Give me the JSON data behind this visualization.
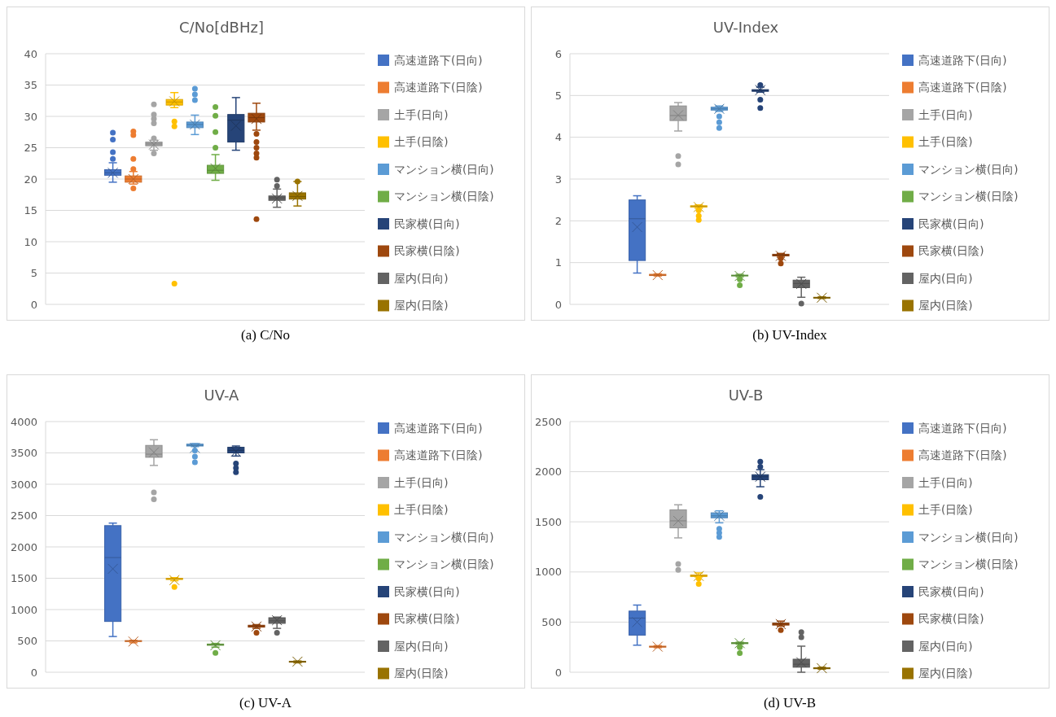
{
  "chart_data": [
    {
      "type": "box",
      "title": "C/No[dBHz]",
      "categories": [
        null
      ],
      "ylim": [
        0,
        40
      ],
      "yticks": [
        0,
        5,
        10,
        15,
        20,
        25,
        30,
        35,
        40
      ],
      "grid": "y",
      "legend": "right",
      "annotations": [
        "(a) C/No"
      ],
      "series": [
        {
          "name": "高速道路下(日向)",
          "color": "#4472c4",
          "boxes": [
            {
              "low": 19.5,
              "q1": 20.6,
              "median": 21.0,
              "q3": 21.5,
              "high": 22.6,
              "mean": 21.0,
              "outliers": [
                23.2,
                24.3,
                26.3,
                27.4
              ]
            }
          ]
        },
        {
          "name": "高速道路下(日陰)",
          "color": "#ed7d31",
          "boxes": [
            {
              "low": 19.2,
              "q1": 19.5,
              "median": 20.0,
              "q3": 20.5,
              "high": 21.2,
              "mean": 20.0,
              "outliers": [
                18.5,
                21.6,
                23.2,
                27.0,
                27.6
              ]
            }
          ]
        },
        {
          "name": "土手(日向)",
          "color": "#a5a5a5",
          "boxes": [
            {
              "low": 24.6,
              "q1": 25.3,
              "median": 25.6,
              "q3": 25.9,
              "high": 26.2,
              "mean": 25.5,
              "outliers": [
                24.1,
                26.5,
                28.9,
                29.6,
                30.3,
                31.9
              ]
            }
          ]
        },
        {
          "name": "土手(日陰)",
          "color": "#ffc000",
          "boxes": [
            {
              "low": 31.4,
              "q1": 31.8,
              "median": 32.3,
              "q3": 32.7,
              "high": 33.8,
              "mean": 32.4,
              "outliers": [
                3.3,
                28.4,
                29.2
              ]
            }
          ]
        },
        {
          "name": "マンション横(日向)",
          "color": "#5b9bd5",
          "boxes": [
            {
              "low": 27.1,
              "q1": 28.2,
              "median": 28.7,
              "q3": 29.1,
              "high": 30.2,
              "mean": 28.7,
              "outliers": [
                32.6,
                33.5,
                34.4
              ]
            }
          ]
        },
        {
          "name": "マンション横(日陰)",
          "color": "#70ad47",
          "boxes": [
            {
              "low": 19.8,
              "q1": 20.9,
              "median": 21.4,
              "q3": 22.2,
              "high": 23.9,
              "mean": 21.7,
              "outliers": [
                25.0,
                27.5,
                30.1,
                31.5
              ]
            }
          ]
        },
        {
          "name": "民家横(日向)",
          "color": "#264478",
          "boxes": [
            {
              "low": 24.6,
              "q1": 25.9,
              "median": 29.4,
              "q3": 30.3,
              "high": 33.0,
              "mean": 28.5
            }
          ]
        },
        {
          "name": "民家横(日陰)",
          "color": "#9e480e",
          "boxes": [
            {
              "low": 27.8,
              "q1": 29.1,
              "median": 29.8,
              "q3": 30.5,
              "high": 32.1,
              "mean": 29.6,
              "outliers": [
                13.6,
                23.4,
                24.1,
                25.0,
                25.9,
                27.2
              ]
            }
          ]
        },
        {
          "name": "屋内(日向)",
          "color": "#636363",
          "boxes": [
            {
              "low": 15.5,
              "q1": 16.6,
              "median": 17.0,
              "q3": 17.3,
              "high": 18.4,
              "mean": 16.9,
              "outliers": [
                18.9,
                19.9
              ]
            }
          ]
        },
        {
          "name": "屋内(日陰)",
          "color": "#997300",
          "boxes": [
            {
              "low": 15.7,
              "q1": 16.8,
              "median": 17.2,
              "q3": 17.8,
              "high": 19.6,
              "mean": 17.3,
              "outliers": [
                19.6
              ]
            }
          ]
        }
      ]
    },
    {
      "type": "box",
      "title": "UV-Index",
      "categories": [
        null
      ],
      "ylim": [
        0,
        6
      ],
      "yticks": [
        0,
        1,
        2,
        3,
        4,
        5,
        6
      ],
      "grid": "y",
      "legend": "right",
      "annotations": [
        "(b) UV-Index"
      ],
      "series": [
        {
          "name": "高速道路下(日向)",
          "color": "#4472c4",
          "boxes": [
            {
              "low": 0.75,
              "q1": 1.05,
              "median": 2.05,
              "q3": 2.5,
              "high": 2.6,
              "mean": 1.85
            }
          ]
        },
        {
          "name": "高速道路下(日陰)",
          "color": "#ed7d31",
          "boxes": [
            {
              "low": 0.68,
              "q1": 0.69,
              "median": 0.7,
              "q3": 0.72,
              "high": 0.73,
              "mean": 0.7
            }
          ]
        },
        {
          "name": "土手(日向)",
          "color": "#a5a5a5",
          "boxes": [
            {
              "low": 4.15,
              "q1": 4.4,
              "median": 4.52,
              "q3": 4.75,
              "high": 4.83,
              "mean": 4.53,
              "outliers": [
                3.35,
                3.55
              ]
            }
          ]
        },
        {
          "name": "土手(日陰)",
          "color": "#ffc000",
          "boxes": [
            {
              "low": 2.3,
              "q1": 2.33,
              "median": 2.35,
              "q3": 2.36,
              "high": 2.38,
              "mean": 2.33,
              "outliers": [
                2.02,
                2.12,
                2.25
              ]
            }
          ]
        },
        {
          "name": "マンション横(日向)",
          "color": "#5b9bd5",
          "boxes": [
            {
              "low": 4.62,
              "q1": 4.65,
              "median": 4.68,
              "q3": 4.72,
              "high": 4.75,
              "mean": 4.68,
              "outliers": [
                4.22,
                4.36,
                4.5
              ]
            }
          ]
        },
        {
          "name": "マンション横(日陰)",
          "color": "#70ad47",
          "boxes": [
            {
              "low": 0.66,
              "q1": 0.68,
              "median": 0.69,
              "q3": 0.7,
              "high": 0.72,
              "mean": 0.68,
              "outliers": [
                0.46,
                0.6
              ]
            }
          ]
        },
        {
          "name": "民家横(日向)",
          "color": "#264478",
          "boxes": [
            {
              "low": 5.08,
              "q1": 5.1,
              "median": 5.12,
              "q3": 5.14,
              "high": 5.2,
              "mean": 5.13,
              "outliers": [
                4.7,
                4.9,
                5.25
              ]
            }
          ]
        },
        {
          "name": "民家横(日陰)",
          "color": "#9e480e",
          "boxes": [
            {
              "low": 1.13,
              "q1": 1.16,
              "median": 1.18,
              "q3": 1.2,
              "high": 1.22,
              "mean": 1.16,
              "outliers": [
                0.98,
                1.1
              ]
            }
          ]
        },
        {
          "name": "屋内(日向)",
          "color": "#636363",
          "boxes": [
            {
              "low": 0.17,
              "q1": 0.4,
              "median": 0.5,
              "q3": 0.58,
              "high": 0.65,
              "mean": 0.49,
              "outliers": [
                0.02
              ]
            }
          ]
        },
        {
          "name": "屋内(日陰)",
          "color": "#997300",
          "boxes": [
            {
              "low": 0.14,
              "q1": 0.15,
              "median": 0.16,
              "q3": 0.17,
              "high": 0.18,
              "mean": 0.16
            }
          ]
        }
      ]
    },
    {
      "type": "box",
      "title": "UV-A",
      "categories": [
        null
      ],
      "ylim": [
        0,
        4000
      ],
      "yticks": [
        0,
        500,
        1000,
        1500,
        2000,
        2500,
        3000,
        3500,
        4000
      ],
      "grid": "y",
      "legend": "right",
      "annotations": [
        "(c) UV-A"
      ],
      "series": [
        {
          "name": "高速道路下(日向)",
          "color": "#4472c4",
          "boxes": [
            {
              "low": 570,
              "q1": 810,
              "median": 1830,
              "q3": 2340,
              "high": 2380,
              "mean": 1650
            }
          ]
        },
        {
          "name": "高速道路下(日陰)",
          "color": "#ed7d31",
          "boxes": [
            {
              "low": 470,
              "q1": 490,
              "median": 500,
              "q3": 505,
              "high": 510,
              "mean": 490
            }
          ]
        },
        {
          "name": "土手(日向)",
          "color": "#a5a5a5",
          "boxes": [
            {
              "low": 3300,
              "q1": 3430,
              "median": 3480,
              "q3": 3620,
              "high": 3710,
              "mean": 3510,
              "outliers": [
                2760,
                2870
              ]
            }
          ]
        },
        {
          "name": "土手(日陰)",
          "color": "#ffc000",
          "boxes": [
            {
              "low": 1460,
              "q1": 1480,
              "median": 1490,
              "q3": 1500,
              "high": 1510,
              "mean": 1470,
              "outliers": [
                1360
              ]
            }
          ]
        },
        {
          "name": "マンション横(日向)",
          "color": "#5b9bd5",
          "boxes": [
            {
              "low": 3600,
              "q1": 3610,
              "median": 3620,
              "q3": 3640,
              "high": 3650,
              "mean": 3580,
              "outliers": [
                3350,
                3440,
                3540
              ]
            }
          ]
        },
        {
          "name": "マンション横(日陰)",
          "color": "#70ad47",
          "boxes": [
            {
              "low": 400,
              "q1": 430,
              "median": 440,
              "q3": 450,
              "high": 460,
              "mean": 430,
              "outliers": [
                310
              ]
            }
          ]
        },
        {
          "name": "民家横(日向)",
          "color": "#264478",
          "boxes": [
            {
              "low": 3450,
              "q1": 3500,
              "median": 3540,
              "q3": 3590,
              "high": 3610,
              "mean": 3520,
              "outliers": [
                3190,
                3260,
                3330
              ]
            }
          ]
        },
        {
          "name": "民家横(日陰)",
          "color": "#9e480e",
          "boxes": [
            {
              "low": 700,
              "q1": 720,
              "median": 740,
              "q3": 750,
              "high": 760,
              "mean": 730,
              "outliers": [
                630
              ]
            }
          ]
        },
        {
          "name": "屋内(日向)",
          "color": "#636363",
          "boxes": [
            {
              "low": 700,
              "q1": 780,
              "median": 820,
              "q3": 870,
              "high": 880,
              "mean": 830,
              "outliers": [
                630
              ]
            }
          ]
        },
        {
          "name": "屋内(日陰)",
          "color": "#997300",
          "boxes": [
            {
              "low": 150,
              "q1": 160,
              "median": 170,
              "q3": 175,
              "high": 180,
              "mean": 170
            }
          ]
        }
      ]
    },
    {
      "type": "box",
      "title": "UV-B",
      "categories": [
        null
      ],
      "ylim": [
        0,
        2500
      ],
      "yticks": [
        0,
        500,
        1000,
        1500,
        2000,
        2500
      ],
      "grid": "y",
      "legend": "right",
      "annotations": [
        "(d) UV-B"
      ],
      "series": [
        {
          "name": "高速道路下(日向)",
          "color": "#4472c4",
          "boxes": [
            {
              "low": 270,
              "q1": 370,
              "median": 540,
              "q3": 610,
              "high": 670,
              "mean": 500
            }
          ]
        },
        {
          "name": "高速道路下(日陰)",
          "color": "#ed7d31",
          "boxes": [
            {
              "low": 245,
              "q1": 250,
              "median": 255,
              "q3": 260,
              "high": 265,
              "mean": 255
            }
          ]
        },
        {
          "name": "土手(日向)",
          "color": "#a5a5a5",
          "boxes": [
            {
              "low": 1340,
              "q1": 1440,
              "median": 1510,
              "q3": 1620,
              "high": 1670,
              "mean": 1510,
              "outliers": [
                1020,
                1080
              ]
            }
          ]
        },
        {
          "name": "土手(日陰)",
          "color": "#ffc000",
          "boxes": [
            {
              "low": 950,
              "q1": 955,
              "median": 965,
              "q3": 970,
              "high": 990,
              "mean": 960,
              "outliers": [
                880,
                935
              ]
            }
          ]
        },
        {
          "name": "マンション横(日向)",
          "color": "#5b9bd5",
          "boxes": [
            {
              "low": 1490,
              "q1": 1540,
              "median": 1560,
              "q3": 1590,
              "high": 1610,
              "mean": 1560,
              "outliers": [
                1350,
                1390,
                1430
              ]
            }
          ]
        },
        {
          "name": "マンション横(日陰)",
          "color": "#70ad47",
          "boxes": [
            {
              "low": 280,
              "q1": 285,
              "median": 290,
              "q3": 295,
              "high": 300,
              "mean": 290,
              "outliers": [
                190,
                250
              ]
            }
          ]
        },
        {
          "name": "民家横(日向)",
          "color": "#264478",
          "boxes": [
            {
              "low": 1850,
              "q1": 1920,
              "median": 1950,
              "q3": 1970,
              "high": 2020,
              "mean": 1950,
              "outliers": [
                1750,
                2050,
                2100
              ]
            }
          ]
        },
        {
          "name": "民家横(日陰)",
          "color": "#9e480e",
          "boxes": [
            {
              "low": 460,
              "q1": 470,
              "median": 480,
              "q3": 490,
              "high": 510,
              "mean": 480,
              "outliers": [
                420
              ]
            }
          ]
        },
        {
          "name": "屋内(日向)",
          "color": "#636363",
          "boxes": [
            {
              "low": 0,
              "q1": 50,
              "median": 80,
              "q3": 130,
              "high": 260,
              "mean": 100,
              "outliers": [
                350,
                400
              ]
            }
          ]
        },
        {
          "name": "屋内(日陰)",
          "color": "#997300",
          "boxes": [
            {
              "low": 30,
              "q1": 35,
              "median": 40,
              "q3": 45,
              "high": 50,
              "mean": 40
            }
          ]
        }
      ]
    }
  ]
}
